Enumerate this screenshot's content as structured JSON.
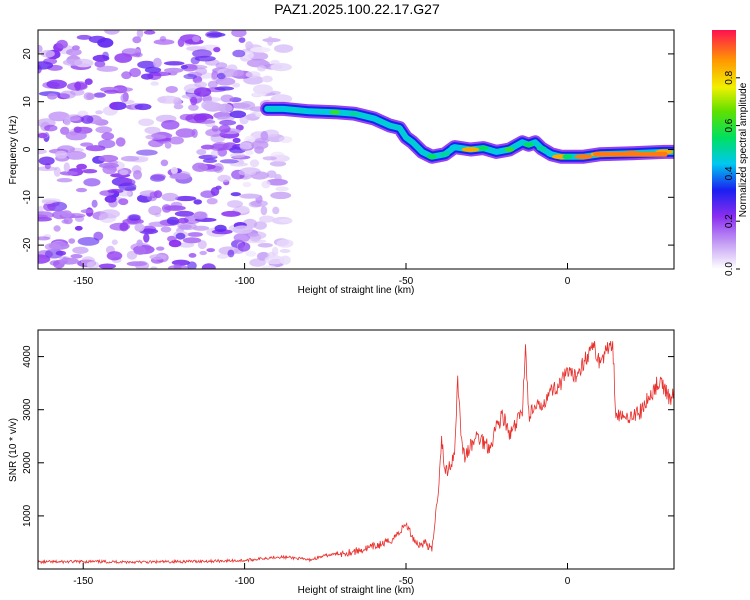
{
  "title": "PAZ1.2025.100.22.17.G27",
  "colors": {
    "line": "#e8302c",
    "blob": "#9a40f0",
    "frame": "#000000"
  },
  "chart_data": [
    {
      "type": "heatmap",
      "xlabel": "Height of straight line (km)",
      "ylabel": "Frequency (Hz)",
      "xlim": [
        -164,
        33
      ],
      "ylim": [
        -25,
        25
      ],
      "xticks": [
        -150,
        -100,
        -50,
        0
      ],
      "yticks": [
        -20,
        -10,
        0,
        10,
        20
      ],
      "colorbar": {
        "label": "Normalized spectral amplitude",
        "range": [
          0,
          1
        ],
        "ticks": [
          0.0,
          0.2,
          0.4,
          0.6,
          0.8
        ],
        "tick_labels": [
          "0.0",
          "0.2",
          "0.4",
          "0.6",
          "0.8"
        ]
      },
      "ridge": {
        "x": [
          -93,
          -88,
          -80,
          -72,
          -66,
          -60,
          -55,
          -52,
          -50,
          -48,
          -45,
          -42,
          -38,
          -35,
          -30,
          -26,
          -22,
          -18,
          -14,
          -12,
          -10,
          -8,
          -5,
          -2,
          0,
          5,
          10,
          20,
          30,
          33
        ],
        "frequency": [
          8.5,
          8.5,
          8,
          7.8,
          7.5,
          6.5,
          5,
          4.5,
          2.5,
          1.5,
          -0.5,
          -1.5,
          -1,
          0.5,
          0,
          0.3,
          -0.5,
          0,
          1.5,
          1,
          1.5,
          0.2,
          -1,
          -1.5,
          -1.5,
          -1.5,
          -1,
          -0.8,
          -0.5,
          -0.5
        ],
        "amplitude": [
          0.35,
          0.45,
          0.45,
          0.6,
          0.5,
          0.45,
          0.4,
          0.35,
          0.4,
          0.35,
          0.35,
          0.55,
          0.5,
          0.45,
          0.85,
          0.55,
          0.45,
          0.6,
          0.4,
          0.55,
          0.4,
          0.5,
          0.45,
          0.85,
          0.55,
          0.9,
          0.85,
          0.9,
          0.85,
          0.4
        ]
      },
      "noise_region": {
        "x": [
          -164,
          -93
        ],
        "amplitude": 0.15
      }
    },
    {
      "type": "line",
      "xlabel": "Height of straight line (km)",
      "ylabel": "SNR (10 * v/v)",
      "xlim": [
        -164,
        33
      ],
      "ylim": [
        0,
        4500
      ],
      "xticks": [
        -150,
        -100,
        -50,
        0
      ],
      "yticks": [
        1000,
        2000,
        3000,
        4000
      ],
      "series": [
        {
          "x": [
            -164,
            -150,
            -130,
            -110,
            -100,
            -90,
            -85,
            -80,
            -75,
            -70,
            -65,
            -60,
            -55,
            -52,
            -50,
            -48,
            -46,
            -44,
            -42,
            -40,
            -39,
            -38,
            -36,
            -35,
            -34,
            -33,
            -32,
            -30,
            -28,
            -26,
            -24,
            -22,
            -20,
            -18,
            -16,
            -14,
            -13,
            -12,
            -10,
            -8,
            -6,
            -4,
            -2,
            0,
            2,
            4,
            6,
            8,
            10,
            12,
            14,
            15,
            16,
            18,
            20,
            22,
            24,
            26,
            28,
            30,
            32,
            33
          ],
          "y": [
            130,
            140,
            130,
            150,
            160,
            230,
            210,
            170,
            250,
            300,
            340,
            420,
            520,
            700,
            850,
            600,
            450,
            500,
            350,
            1500,
            2500,
            1800,
            2000,
            2200,
            3600,
            2600,
            2100,
            2300,
            2500,
            2400,
            2300,
            2700,
            2900,
            2500,
            2700,
            3000,
            4200,
            2900,
            3000,
            3100,
            3300,
            3400,
            3500,
            3700,
            3600,
            3800,
            4000,
            4200,
            3900,
            4100,
            4300,
            2900,
            2900,
            2800,
            2950,
            2900,
            3100,
            3300,
            3500,
            3400,
            3200,
            3300
          ]
        }
      ]
    }
  ]
}
